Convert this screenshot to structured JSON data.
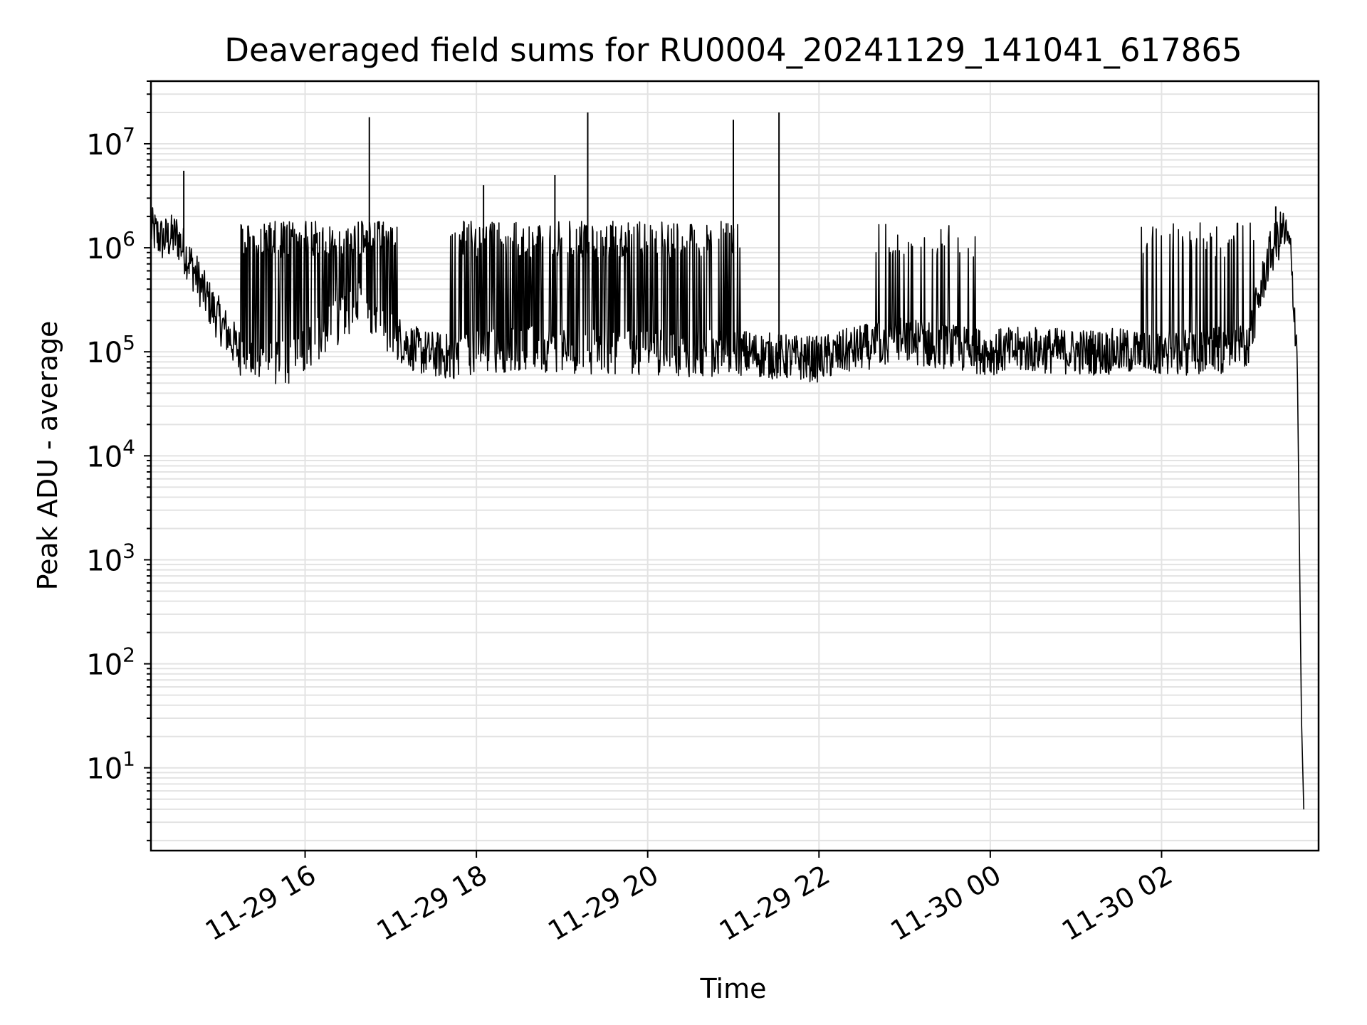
{
  "chart_data": {
    "type": "line",
    "title": "Deaveraged field sums for RU0004_20241129_141041_617865",
    "xlabel": "Time",
    "ylabel": "Peak ADU - average",
    "yscale": "log",
    "ylim": [
      1.6,
      40000000
    ],
    "xlim": [
      "2024-11-29 14:12",
      "2024-11-30 03:50"
    ],
    "grid": true,
    "legend": "none",
    "line_color": "#000000",
    "x_ticks": [
      "11-29 16",
      "11-29 18",
      "11-29 20",
      "11-29 22",
      "11-30 00",
      "11-30 02"
    ],
    "x_tick_times": [
      "2024-11-29 16:00",
      "2024-11-29 18:00",
      "2024-11-29 20:00",
      "2024-11-29 22:00",
      "2024-11-30 00:00",
      "2024-11-30 02:00"
    ],
    "y_ticks": [
      {
        "base": "10",
        "exp": "1",
        "value": 10
      },
      {
        "base": "10",
        "exp": "2",
        "value": 100
      },
      {
        "base": "10",
        "exp": "3",
        "value": 1000
      },
      {
        "base": "10",
        "exp": "4",
        "value": 10000
      },
      {
        "base": "10",
        "exp": "5",
        "value": 100000
      },
      {
        "base": "10",
        "exp": "6",
        "value": 1000000
      },
      {
        "base": "10",
        "exp": "7",
        "value": 10000000
      }
    ],
    "series": [
      {
        "x": [
          "2024-11-29 14:12",
          "2024-11-29 14:20",
          "2024-11-29 14:30",
          "2024-11-29 14:40",
          "2024-11-29 14:50",
          "2024-11-29 15:00",
          "2024-11-29 15:10",
          "2024-11-29 15:20",
          "2024-11-29 15:30",
          "2024-11-29 15:40",
          "2024-11-29 15:50",
          "2024-11-29 16:00",
          "2024-11-29 16:20",
          "2024-11-29 16:40",
          "2024-11-29 17:00",
          "2024-11-29 17:20",
          "2024-11-29 17:40",
          "2024-11-29 18:00",
          "2024-11-29 18:30",
          "2024-11-29 19:00",
          "2024-11-29 19:30",
          "2024-11-29 20:00",
          "2024-11-29 20:30",
          "2024-11-29 21:00",
          "2024-11-29 21:30",
          "2024-11-29 22:00",
          "2024-11-29 22:30",
          "2024-11-29 23:00",
          "2024-11-29 23:30",
          "2024-11-30 00:00",
          "2024-11-30 00:30",
          "2024-11-30 01:00",
          "2024-11-30 01:30",
          "2024-11-30 02:00",
          "2024-11-30 02:30",
          "2024-11-30 03:00",
          "2024-11-30 03:15",
          "2024-11-30 03:25",
          "2024-11-30 03:30",
          "2024-11-30 03:35",
          "2024-11-30 03:38",
          "2024-11-30 03:40"
        ],
        "y": [
          1500000,
          1200000,
          1300000,
          700000,
          350000,
          200000,
          120000,
          80000,
          70000,
          75000,
          80000,
          100000,
          180000,
          300000,
          150000,
          100000,
          90000,
          100000,
          110000,
          105000,
          100000,
          100000,
          95000,
          100000,
          90000,
          85000,
          110000,
          130000,
          110000,
          100000,
          105000,
          100000,
          100000,
          100000,
          100000,
          110000,
          800000,
          1500000,
          1000000,
          100000,
          30,
          2.5
        ]
      }
    ],
    "spikes": [
      {
        "x": "2024-11-29 14:35",
        "y": 5500000
      },
      {
        "x": "2024-11-29 16:45",
        "y": 18000000
      },
      {
        "x": "2024-11-29 18:05",
        "y": 4000000
      },
      {
        "x": "2024-11-29 18:55",
        "y": 5000000
      },
      {
        "x": "2024-11-29 19:18",
        "y": 20000000
      },
      {
        "x": "2024-11-29 21:00",
        "y": 17000000
      },
      {
        "x": "2024-11-29 21:32",
        "y": 20000000
      },
      {
        "x": "2024-11-30 03:20",
        "y": 2500000
      }
    ]
  }
}
